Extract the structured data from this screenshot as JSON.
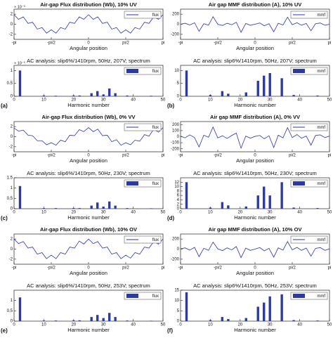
{
  "chart_data": [
    {
      "type": "line",
      "title": "Air-gap Flux distribution (Wb), 10% UV",
      "title_color": "#c0282d",
      "x_label": "Angular position",
      "y_scale_label": "× 10⁻⁵",
      "x": [
        -3.14,
        -2.95,
        -2.75,
        -2.55,
        -2.36,
        -2.16,
        -1.96,
        -1.77,
        -1.57,
        -1.37,
        -1.18,
        -0.98,
        -0.79,
        -0.59,
        -0.39,
        -0.2,
        0,
        0.2,
        0.39,
        0.59,
        0.79,
        0.98,
        1.18,
        1.37,
        1.57,
        1.77,
        1.96,
        2.16,
        2.36,
        2.55,
        2.75,
        2.95,
        3.14
      ],
      "series": [
        {
          "name": "flux",
          "color": "#2b35a8",
          "values": [
            1.9,
            0.98,
            1.46,
            0.17,
            0.4,
            -0.97,
            -0.66,
            -1.78,
            -1.1,
            -1.78,
            -0.66,
            -0.97,
            0.4,
            0.17,
            1.46,
            0.98,
            1.9,
            0.98,
            1.46,
            0.17,
            0.4,
            -0.97,
            -0.66,
            -1.78,
            -1.1,
            -1.78,
            -0.66,
            -0.97,
            0.4,
            0.17,
            1.46,
            0.98,
            1.9
          ]
        }
      ],
      "xlim": [
        -3.14,
        3.14
      ],
      "xticks": [
        {
          "value": -3.14,
          "label": "-pi"
        },
        {
          "value": -1.57,
          "label": "-pi/2"
        },
        0,
        {
          "value": 1.57,
          "label": "pi/2"
        },
        {
          "value": 3.14,
          "label": "pi"
        }
      ],
      "ylim": [
        -3,
        3
      ],
      "yticks": [
        -2,
        0,
        2
      ]
    },
    {
      "type": "line",
      "title": "Air gap MMF distribution (A), 10% UV",
      "title_color": "#c0282d",
      "x_label": "Angular position",
      "x": [
        -3.14,
        -2.95,
        -2.75,
        -2.55,
        -2.36,
        -2.16,
        -1.96,
        -1.77,
        -1.57,
        -1.37,
        -1.18,
        -0.98,
        -0.79,
        -0.59,
        -0.39,
        -0.2,
        0,
        0.2,
        0.39,
        0.59,
        0.79,
        0.98,
        1.18,
        1.37,
        1.57,
        1.77,
        1.96,
        2.16,
        2.36,
        2.55,
        2.75,
        2.95,
        3.14
      ],
      "series": [
        {
          "name": "mmf",
          "color": "#2b35a8",
          "values": [
            0,
            20,
            -15,
            30,
            -140,
            10,
            -20,
            150,
            0,
            -25,
            20,
            -10,
            40,
            -160,
            15,
            -20,
            0,
            25,
            -30,
            10,
            -150,
            20,
            -15,
            140,
            -10,
            30,
            -20,
            15,
            -130,
            10,
            25,
            -20,
            0
          ]
        }
      ],
      "xlim": [
        -3.14,
        3.14
      ],
      "xticks": [
        {
          "value": -3.14,
          "label": "-pi"
        },
        {
          "value": -1.57,
          "label": "-pi/2"
        },
        0,
        {
          "value": 1.57,
          "label": "pi/2"
        },
        {
          "value": 3.14,
          "label": "pi"
        }
      ],
      "ylim": [
        -300,
        300
      ],
      "yticks": [
        -200,
        0,
        200
      ]
    },
    {
      "type": "bar",
      "title": "AC analysis: slip6%/1410rpm, 50Hz, 207V; spectrum",
      "title_color": "#111111",
      "x_label": "Harmonic number",
      "y_scale_label": "× 10⁻⁵",
      "panel_label": "(a)",
      "x": [
        2,
        10,
        14,
        20,
        22,
        26,
        28,
        30,
        32,
        34,
        38,
        46
      ],
      "series": [
        {
          "name": "flux",
          "color": "#2e3aa0",
          "values": [
            1.0,
            0.03,
            0.02,
            0.03,
            0.03,
            0.12,
            0.2,
            0.07,
            0.3,
            0.12,
            0.03,
            0.02
          ]
        }
      ],
      "xlim": [
        0,
        50
      ],
      "xticks": [
        0,
        10,
        20,
        30,
        40,
        50
      ],
      "ylim": [
        0,
        1.2
      ],
      "yticks": [
        0,
        0.5,
        1
      ]
    },
    {
      "type": "bar",
      "title": "AC analysis: slip6%/1410rpm, 50Hz, 207V; spectrum",
      "title_color": "#111111",
      "x_label": "Harmonic number",
      "panel_label": "(b)",
      "x": [
        2,
        10,
        14,
        16,
        22,
        26,
        28,
        30,
        34,
        38,
        46
      ],
      "series": [
        {
          "name": "mmf",
          "color": "#2e3aa0",
          "values": [
            10,
            0.5,
            2,
            1,
            1.5,
            6,
            8,
            9,
            7,
            0.5,
            0.3
          ]
        }
      ],
      "xlim": [
        0,
        50
      ],
      "xticks": [
        0,
        10,
        20,
        30,
        40,
        50
      ],
      "ylim": [
        0,
        12
      ],
      "yticks": [
        0,
        5,
        10
      ]
    },
    {
      "type": "line",
      "title": "Air-gap Flux distribution (Wb), 0% VV",
      "title_color": "#c0282d",
      "x_label": "Angular position",
      "x": [
        -3.14,
        -2.95,
        -2.75,
        -2.55,
        -2.36,
        -2.16,
        -1.96,
        -1.77,
        -1.57,
        -1.37,
        -1.18,
        -0.98,
        -0.79,
        -0.59,
        -0.39,
        -0.2,
        0,
        0.2,
        0.39,
        0.59,
        0.79,
        0.98,
        1.18,
        1.37,
        1.57,
        1.77,
        1.96,
        2.16,
        2.36,
        2.55,
        2.75,
        2.95,
        3.14
      ],
      "series": [
        {
          "name": "flux",
          "color": "#2b35a8",
          "values": [
            1.7,
            1.1,
            1.3,
            0.3,
            0.2,
            -0.8,
            -0.8,
            -1.6,
            -1.2,
            -1.7,
            -0.7,
            -1.0,
            0.3,
            0.2,
            1.4,
            1.0,
            1.8,
            1.0,
            1.5,
            0.2,
            0.3,
            -1.0,
            -0.6,
            -1.7,
            -1.2,
            -1.6,
            -0.7,
            -0.9,
            0.4,
            0.1,
            1.5,
            0.9,
            1.8
          ]
        }
      ],
      "xlim": [
        -3.14,
        3.14
      ],
      "xticks": [
        {
          "value": -3.14,
          "label": "-pi"
        },
        {
          "value": -1.57,
          "label": "-pi/2"
        },
        0,
        {
          "value": 1.57,
          "label": "pi/2"
        },
        {
          "value": 3.14,
          "label": "pi"
        }
      ],
      "ylim": [
        -3,
        3
      ],
      "yticks": [
        -2,
        0,
        2
      ]
    },
    {
      "type": "line",
      "title": "Air gap MMF distribution (A), 0% VV",
      "title_color": "#c0282d",
      "x_label": "Angular position",
      "x": [
        -3.14,
        -2.95,
        -2.75,
        -2.55,
        -2.36,
        -2.16,
        -1.96,
        -1.77,
        -1.57,
        -1.37,
        -1.18,
        -0.98,
        -0.79,
        -0.59,
        -0.39,
        -0.2,
        0,
        0.2,
        0.39,
        0.59,
        0.79,
        0.98,
        1.18,
        1.37,
        1.57,
        1.77,
        1.96,
        2.16,
        2.36,
        2.55,
        2.75,
        2.95,
        3.14
      ],
      "series": [
        {
          "name": "mmf",
          "color": "#2b35a8",
          "values": [
            10,
            -20,
            30,
            -15,
            -170,
            25,
            -10,
            160,
            -20,
            15,
            -30,
            20,
            60,
            -190,
            10,
            -25,
            5,
            20,
            -35,
            15,
            -180,
            25,
            -20,
            150,
            -15,
            35,
            -25,
            10,
            -140,
            20,
            30,
            -15,
            10
          ]
        }
      ],
      "xlim": [
        -3.14,
        3.14
      ],
      "xticks": [
        {
          "value": -3.14,
          "label": "-pi"
        },
        {
          "value": -1.57,
          "label": "-pi/2"
        },
        0,
        {
          "value": 1.57,
          "label": "pi/2"
        },
        {
          "value": 3.14,
          "label": "pi"
        }
      ],
      "ylim": [
        -250,
        250
      ],
      "yticks": [
        -200,
        -100,
        0,
        100,
        200
      ]
    },
    {
      "type": "bar",
      "title": "AC analysis: slip6%/1410rpm, 50Hz, 230V; spectrum",
      "title_color": "#111111",
      "x_label": "Harmonic number",
      "panel_label": "(c)",
      "x": [
        2,
        10,
        14,
        20,
        22,
        26,
        28,
        30,
        32,
        34,
        38,
        46
      ],
      "series": [
        {
          "name": "flux",
          "color": "#2e3aa0",
          "values": [
            1.1,
            0.03,
            0.03,
            0.03,
            0.03,
            0.15,
            0.3,
            0.1,
            0.35,
            0.15,
            0.03,
            0.02
          ]
        }
      ],
      "xlim": [
        0,
        50
      ],
      "xticks": [
        0,
        10,
        20,
        30,
        40,
        50
      ],
      "ylim": [
        0,
        1.5
      ],
      "yticks": [
        0,
        0.5,
        1,
        1.5
      ]
    },
    {
      "type": "bar",
      "title": "AC analysis: slip6%/1410rpm, 50Hz, 230V; spectrum",
      "title_color": "#111111",
      "x_label": "Harmonic number",
      "panel_label": "(d)",
      "x": [
        2,
        10,
        14,
        16,
        22,
        26,
        28,
        30,
        34,
        38,
        46
      ],
      "series": [
        {
          "name": "mmf",
          "color": "#2e3aa0",
          "values": [
            12,
            0.5,
            3,
            1.5,
            1,
            6,
            10,
            6,
            12,
            0.5,
            0.3
          ]
        }
      ],
      "xlim": [
        0,
        50
      ],
      "xticks": [
        0,
        10,
        20,
        30,
        40,
        50
      ],
      "ylim": [
        0,
        14
      ],
      "yticks": [
        0,
        2,
        4,
        6,
        8,
        10,
        12
      ]
    },
    {
      "type": "line",
      "title": "Air-gap Flux distribution (Wb), 10% OV",
      "title_color": "#c0282d",
      "x_label": "Angular position",
      "x": [
        -3.14,
        -2.95,
        -2.75,
        -2.55,
        -2.36,
        -2.16,
        -1.96,
        -1.77,
        -1.57,
        -1.37,
        -1.18,
        -0.98,
        -0.79,
        -0.59,
        -0.39,
        -0.2,
        0,
        0.2,
        0.39,
        0.59,
        0.79,
        0.98,
        1.18,
        1.37,
        1.57,
        1.77,
        1.96,
        2.16,
        2.36,
        2.55,
        2.75,
        2.95,
        3.14
      ],
      "series": [
        {
          "name": "flux",
          "color": "#2b35a8",
          "values": [
            2.0,
            1.1,
            1.5,
            0.2,
            0.4,
            -1.0,
            -0.7,
            -1.9,
            -1.2,
            -1.9,
            -0.7,
            -1.0,
            0.4,
            0.2,
            1.6,
            1.0,
            2.0,
            1.1,
            1.5,
            0.2,
            0.4,
            -1.0,
            -0.7,
            -1.9,
            -1.2,
            -1.8,
            -0.7,
            -1.0,
            0.4,
            0.2,
            1.5,
            1.0,
            2.0
          ]
        }
      ],
      "xlim": [
        -3.14,
        3.14
      ],
      "xticks": [
        {
          "value": -3.14,
          "label": "-pi"
        },
        {
          "value": -1.57,
          "label": "-pi/2"
        },
        0,
        {
          "value": 1.57,
          "label": "pi/2"
        },
        {
          "value": 3.14,
          "label": "pi"
        }
      ],
      "ylim": [
        -3,
        3
      ],
      "yticks": [
        -2,
        0,
        2
      ]
    },
    {
      "type": "line",
      "title": "Air gap MMF distribution (A), 10% OV",
      "title_color": "#c0282d",
      "x_label": "Angular position",
      "x": [
        -3.14,
        -2.95,
        -2.75,
        -2.55,
        -2.36,
        -2.16,
        -1.96,
        -1.77,
        -1.57,
        -1.37,
        -1.18,
        -0.98,
        -0.79,
        -0.59,
        -0.39,
        -0.2,
        0,
        0.2,
        0.39,
        0.59,
        0.79,
        0.98,
        1.18,
        1.37,
        1.57,
        1.77,
        1.96,
        2.16,
        2.36,
        2.55,
        2.75,
        2.95,
        3.14
      ],
      "series": [
        {
          "name": "mmf",
          "color": "#2b35a8",
          "values": [
            5,
            25,
            -20,
            35,
            -150,
            15,
            -25,
            140,
            5,
            -30,
            25,
            -15,
            50,
            -170,
            20,
            -25,
            0,
            30,
            -35,
            15,
            -160,
            25,
            -20,
            150,
            -15,
            35,
            -25,
            20,
            -140,
            15,
            30,
            -25,
            5
          ]
        }
      ],
      "xlim": [
        -3.14,
        3.14
      ],
      "xticks": [
        {
          "value": -3.14,
          "label": "-pi"
        },
        {
          "value": -1.57,
          "label": "-pi/2"
        },
        0,
        {
          "value": 1.57,
          "label": "pi/2"
        },
        {
          "value": 3.14,
          "label": "pi"
        }
      ],
      "ylim": [
        -300,
        300
      ],
      "yticks": [
        -200,
        0,
        200
      ]
    },
    {
      "type": "bar",
      "title": "AC analysis: slip6%/1410rpm, 50Hz, 253V; spectrum",
      "title_color": "#111111",
      "x_label": "Harmonic number",
      "panel_label": "(e)",
      "x": [
        2,
        10,
        14,
        20,
        22,
        26,
        28,
        30,
        32,
        34,
        38,
        46
      ],
      "series": [
        {
          "name": "flux",
          "color": "#2e3aa0",
          "values": [
            1.15,
            0.03,
            0.03,
            0.04,
            0.04,
            0.2,
            0.3,
            0.15,
            0.4,
            0.2,
            0.03,
            0.02
          ]
        }
      ],
      "xlim": [
        0,
        50
      ],
      "xticks": [
        0,
        10,
        20,
        30,
        40,
        50
      ],
      "ylim": [
        0,
        1.5
      ],
      "yticks": [
        0,
        0.5,
        1
      ]
    },
    {
      "type": "bar",
      "title": "AC analysis: slip6%/1410rpm, 50Hz, 253V; spectrum",
      "title_color": "#111111",
      "x_label": "Harmonic number",
      "panel_label": "(f)",
      "x": [
        2,
        10,
        14,
        16,
        22,
        26,
        28,
        30,
        34,
        38,
        46
      ],
      "series": [
        {
          "name": "mmf",
          "color": "#2e3aa0",
          "values": [
            14,
            0.5,
            2,
            1,
            1.5,
            7,
            9,
            12,
            13,
            0.5,
            0.3
          ]
        }
      ],
      "xlim": [
        0,
        50
      ],
      "xticks": [
        0,
        10,
        20,
        30,
        40,
        50
      ],
      "ylim": [
        0,
        15
      ],
      "yticks": [
        0,
        5,
        10,
        15
      ]
    }
  ]
}
